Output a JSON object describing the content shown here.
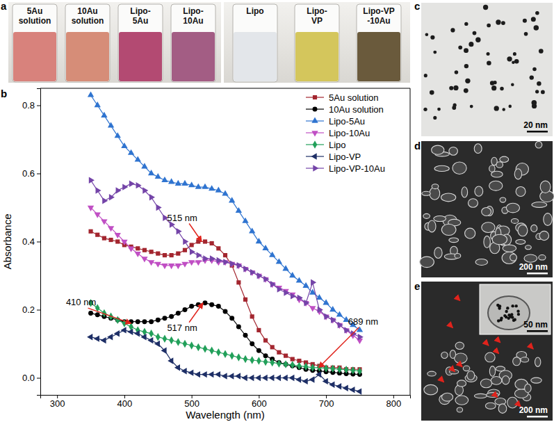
{
  "chart_data": {
    "type": "line",
    "x_label": "Wavelength (nm)",
    "y_label": "Absorbance",
    "x": [
      350,
      360,
      370,
      380,
      390,
      400,
      410,
      420,
      430,
      440,
      450,
      460,
      470,
      480,
      490,
      500,
      510,
      520,
      530,
      540,
      550,
      560,
      570,
      580,
      590,
      600,
      610,
      620,
      630,
      640,
      650,
      660,
      670,
      680,
      690,
      700,
      710,
      720,
      730,
      740,
      750
    ],
    "xlim": [
      275,
      825
    ],
    "xticks": [
      300,
      400,
      500,
      600,
      700,
      800
    ],
    "ylim": [
      -0.05,
      0.85
    ],
    "yticks": [
      {
        "value": 0,
        "label": "0.0"
      },
      {
        "value": 0.2,
        "label": "0.2"
      },
      {
        "value": 0.4,
        "label": "0.4"
      },
      {
        "value": 0.6,
        "label": "0.6"
      },
      {
        "value": 0.8,
        "label": "0.8"
      }
    ],
    "legend": "upper right",
    "grid": false,
    "series": [
      {
        "name": "5Au solution",
        "color": "#a3262f",
        "marker": "square",
        "line_style": "solid",
        "values": [
          0.43,
          0.42,
          0.41,
          0.405,
          0.4,
          0.39,
          0.385,
          0.38,
          0.375,
          0.37,
          0.365,
          0.36,
          0.36,
          0.365,
          0.375,
          0.39,
          0.4,
          0.4,
          0.395,
          0.38,
          0.36,
          0.33,
          0.28,
          0.23,
          0.18,
          0.14,
          0.11,
          0.09,
          0.075,
          0.065,
          0.055,
          0.05,
          0.045,
          0.04,
          0.035,
          0.03,
          0.03,
          0.03,
          0.025,
          0.025,
          0.025
        ]
      },
      {
        "name": "10Au solution",
        "color": "#000000",
        "marker": "circle",
        "line_style": "solid",
        "values": [
          0.19,
          0.185,
          0.18,
          0.175,
          0.17,
          0.165,
          0.165,
          0.165,
          0.165,
          0.165,
          0.17,
          0.175,
          0.18,
          0.19,
          0.2,
          0.21,
          0.215,
          0.22,
          0.215,
          0.21,
          0.195,
          0.175,
          0.15,
          0.125,
          0.1,
          0.08,
          0.065,
          0.055,
          0.045,
          0.04,
          0.035,
          0.03,
          0.025,
          0.022,
          0.02,
          0.018,
          0.016,
          0.014,
          0.012,
          0.011,
          0.01
        ]
      },
      {
        "name": "Lipo-5Au",
        "color": "#2f74d0",
        "marker": "triangle-up",
        "line_style": "solid",
        "values": [
          0.83,
          0.8,
          0.77,
          0.74,
          0.71,
          0.68,
          0.66,
          0.64,
          0.62,
          0.6,
          0.59,
          0.58,
          0.575,
          0.57,
          0.57,
          0.565,
          0.56,
          0.56,
          0.555,
          0.55,
          0.54,
          0.52,
          0.49,
          0.46,
          0.43,
          0.4,
          0.38,
          0.36,
          0.34,
          0.32,
          0.3,
          0.285,
          0.27,
          0.25,
          0.235,
          0.22,
          0.2,
          0.185,
          0.17,
          0.155,
          0.14
        ]
      },
      {
        "name": "Lipo-10Au",
        "color": "#c04fc4",
        "marker": "triangle-down",
        "line_style": "solid",
        "values": [
          0.5,
          0.48,
          0.46,
          0.44,
          0.42,
          0.4,
          0.38,
          0.365,
          0.35,
          0.34,
          0.335,
          0.33,
          0.33,
          0.33,
          0.335,
          0.34,
          0.34,
          0.345,
          0.345,
          0.34,
          0.34,
          0.335,
          0.33,
          0.32,
          0.31,
          0.3,
          0.29,
          0.275,
          0.265,
          0.255,
          0.245,
          0.23,
          0.22,
          0.205,
          0.195,
          0.18,
          0.17,
          0.155,
          0.14,
          0.125,
          0.11
        ]
      },
      {
        "name": "Lipo",
        "color": "#22a05a",
        "marker": "diamond",
        "line_style": "solid",
        "values": [
          0.22,
          0.205,
          0.19,
          0.18,
          0.17,
          0.16,
          0.15,
          0.14,
          0.135,
          0.13,
          0.12,
          0.115,
          0.11,
          0.105,
          0.1,
          0.095,
          0.09,
          0.085,
          0.08,
          0.075,
          0.07,
          0.065,
          0.06,
          0.055,
          0.052,
          0.05,
          0.047,
          0.045,
          0.042,
          0.04,
          0.038,
          0.035,
          0.033,
          0.03,
          0.03,
          0.028,
          0.027,
          0.025,
          0.024,
          0.022,
          0.02
        ]
      },
      {
        "name": "Lipo-VP",
        "color": "#1e2f66",
        "marker": "triangle-left",
        "line_style": "solid",
        "values": [
          0.12,
          0.115,
          0.11,
          0.12,
          0.13,
          0.14,
          0.135,
          0.13,
          0.12,
          0.11,
          0.1,
          0.08,
          0.05,
          0.03,
          0.02,
          0.015,
          0.01,
          0.01,
          0.01,
          0.01,
          0.005,
          0.005,
          0.005,
          0,
          0,
          0,
          0,
          0,
          0,
          0,
          0,
          -0.005,
          -0.01,
          -0.005,
          0.01,
          -0.01,
          -0.02,
          -0.025,
          -0.03,
          -0.035,
          -0.04
        ]
      },
      {
        "name": "Lipo-VP-10Au",
        "color": "#7444a8",
        "marker": "triangle-right",
        "line_style": "solid",
        "values": [
          0.58,
          0.55,
          0.52,
          0.53,
          0.55,
          0.56,
          0.57,
          0.565,
          0.55,
          0.53,
          0.5,
          0.47,
          0.45,
          0.43,
          0.4,
          0.37,
          0.36,
          0.35,
          0.35,
          0.345,
          0.34,
          0.335,
          0.33,
          0.32,
          0.31,
          0.3,
          0.29,
          0.275,
          0.26,
          0.25,
          0.24,
          0.235,
          0.22,
          0.28,
          0.2,
          0.18,
          0.17,
          0.155,
          0.14,
          0.13,
          0.12
        ]
      }
    ],
    "annotations": [
      {
        "text": "515 nm",
        "x": 515,
        "y": 0.4
      },
      {
        "text": "410 nm",
        "x": 410,
        "y": 0.16
      },
      {
        "text": "517 nm",
        "x": 517,
        "y": 0.22
      },
      {
        "text": "689 nm",
        "x": 689,
        "y": 0.03
      }
    ]
  },
  "panels": {
    "a": {
      "label": "a",
      "vials": [
        {
          "label": [
            "5Au",
            "solution"
          ],
          "color": "#d8827c"
        },
        {
          "label": [
            "10Au",
            "solution"
          ],
          "color": "#d68d78"
        },
        {
          "label": [
            "Lipo-",
            "5Au"
          ],
          "color": "#b34a72"
        },
        {
          "label": [
            "Lipo-",
            "10Au"
          ],
          "color": "#a35d84"
        },
        {
          "label": [
            "Lipo"
          ],
          "color": "#e3e6ea"
        },
        {
          "label": [
            "Lipo-",
            "VP"
          ],
          "color": "#d4c65c"
        },
        {
          "label": [
            "Lipo-VP",
            "-10Au"
          ],
          "color": "#6a5a3c"
        }
      ]
    },
    "b": {
      "label": "b"
    },
    "c": {
      "label": "c",
      "scale_bar": "20 nm"
    },
    "d": {
      "label": "d",
      "scale_bar": "200 nm"
    },
    "e": {
      "label": "e",
      "scale_bar": "200 nm",
      "inset_scale_bar": "50 nm"
    }
  }
}
